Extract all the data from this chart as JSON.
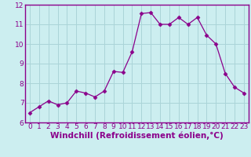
{
  "x": [
    0,
    1,
    2,
    3,
    4,
    5,
    6,
    7,
    8,
    9,
    10,
    11,
    12,
    13,
    14,
    15,
    16,
    17,
    18,
    19,
    20,
    21,
    22,
    23
  ],
  "y": [
    6.5,
    6.8,
    7.1,
    6.9,
    7.0,
    7.6,
    7.5,
    7.3,
    7.6,
    8.6,
    8.55,
    9.6,
    11.55,
    11.6,
    11.0,
    11.0,
    11.35,
    11.0,
    11.35,
    10.45,
    10.0,
    8.5,
    7.8,
    7.5
  ],
  "line_color": "#8B008B",
  "marker": "D",
  "marker_size": 2.5,
  "bg_color": "#cceef0",
  "grid_color": "#aad4d8",
  "xlabel": "Windchill (Refroidissement éolien,°C)",
  "ylim": [
    6,
    12
  ],
  "xlim": [
    -0.5,
    23.5
  ],
  "yticks": [
    6,
    7,
    8,
    9,
    10,
    11,
    12
  ],
  "xticks": [
    0,
    1,
    2,
    3,
    4,
    5,
    6,
    7,
    8,
    9,
    10,
    11,
    12,
    13,
    14,
    15,
    16,
    17,
    18,
    19,
    20,
    21,
    22,
    23
  ],
  "axis_color": "#8B008B",
  "label_fontsize": 7.5,
  "tick_fontsize": 6.5,
  "spine_color": "#8B008B"
}
